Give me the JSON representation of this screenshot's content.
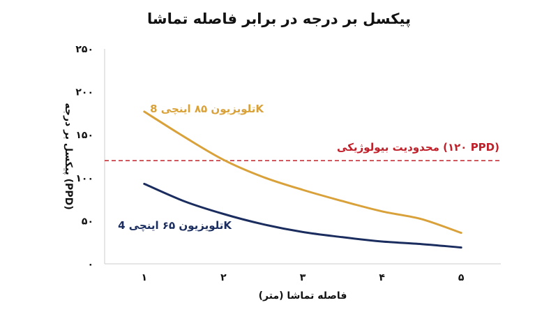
{
  "chart_data": {
    "type": "line",
    "title": "پیکسل بر درجه در برابر فاصله تماشا",
    "xlabel": "فاصله تماشا (متر)",
    "ylabel": "پیکسل بر درجه (PPD)",
    "xlim": [
      0.5,
      5.5
    ],
    "ylim": [
      0,
      250
    ],
    "x_ticks": [
      1,
      2,
      3,
      4,
      5
    ],
    "x_tick_labels": [
      "۱",
      "۲",
      "۳",
      "۴",
      "۵"
    ],
    "y_ticks": [
      0,
      50,
      100,
      150,
      200,
      250
    ],
    "y_tick_labels": [
      "۰",
      "۵۰",
      "۱۰۰",
      "۱۵۰",
      "۲۰۰",
      "۲۵۰"
    ],
    "grid": false,
    "series": [
      {
        "name": "تلویزیون ۸۵ اینچی 8K",
        "color": "#D9A13A",
        "x": [
          1,
          1.5,
          2,
          2.5,
          3,
          3.5,
          4,
          4.5,
          5
        ],
        "values": [
          177,
          148,
          121,
          101,
          86,
          73,
          61,
          52,
          36
        ]
      },
      {
        "name": "تلویزیون ۶۵ اینچی 4K",
        "color": "#1A2D5E",
        "x": [
          1,
          1.5,
          2,
          2.5,
          3,
          3.5,
          4,
          4.5,
          5
        ],
        "values": [
          93,
          73,
          58,
          46,
          37,
          31,
          26,
          23,
          19
        ]
      }
    ],
    "reference_lines": [
      {
        "name": "محدودیت بیولوژیکی (۱۲۰ PPD)",
        "y": 120,
        "color": "#C0202A",
        "style": "dashed"
      }
    ]
  }
}
